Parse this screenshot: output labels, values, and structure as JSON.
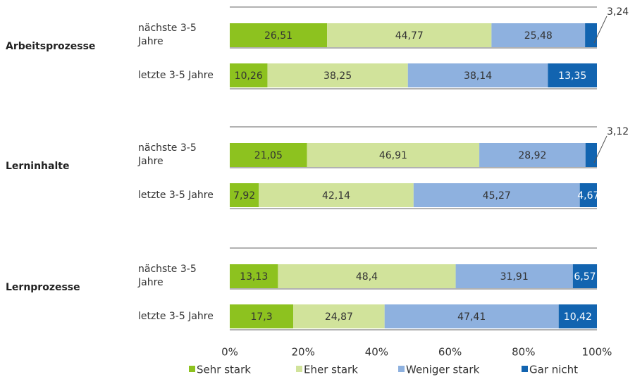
{
  "chart_data": {
    "type": "stacked_bar_horizontal",
    "groups": [
      "Arbeitsprozesse",
      "Lerninhalte",
      "Lernprozesse"
    ],
    "categories": [
      "nächste 3-5 Jahre",
      "letzte 3-5 Jahre",
      "nächste 3-5 Jahre",
      "letzte 3-5 Jahre",
      "nächste 3-5 Jahre",
      "letzte 3-5 Jahre"
    ],
    "series": [
      {
        "name": "Sehr stark",
        "color": "#8dc21f",
        "values": [
          26.51,
          10.26,
          21.05,
          7.92,
          13.13,
          17.3
        ],
        "value_labels": [
          "26,51",
          "10,26",
          "21,05",
          "7,92",
          "13,13",
          "17,3"
        ]
      },
      {
        "name": "Eher stark",
        "color": "#d1e39b",
        "values": [
          44.77,
          38.25,
          46.91,
          42.14,
          48.4,
          24.87
        ],
        "value_labels": [
          "44,77",
          "38,25",
          "46,91",
          "42,14",
          "48,4",
          "24,87"
        ]
      },
      {
        "name": "Weniger stark",
        "color": "#8eb1df",
        "values": [
          25.48,
          38.14,
          28.92,
          45.27,
          31.91,
          47.41
        ],
        "value_labels": [
          "25,48",
          "38,14",
          "28,92",
          "45,27",
          "31,91",
          "47,41"
        ]
      },
      {
        "name": "Gar nicht",
        "color": "#1264b0",
        "values": [
          3.24,
          13.35,
          3.12,
          4.67,
          6.57,
          10.42
        ],
        "value_labels": [
          "3,24",
          "13,35",
          "3,12",
          "4,67",
          "6,57",
          "10,42"
        ]
      }
    ],
    "xlim": [
      0,
      100
    ],
    "xticks": [
      {
        "value": 0,
        "label": "0%"
      },
      {
        "value": 20,
        "label": "20%"
      },
      {
        "value": 40,
        "label": "40%"
      },
      {
        "value": 60,
        "label": "60%"
      },
      {
        "value": 80,
        "label": "80%"
      },
      {
        "value": 100,
        "label": "100%"
      }
    ],
    "legend": "bottom"
  }
}
